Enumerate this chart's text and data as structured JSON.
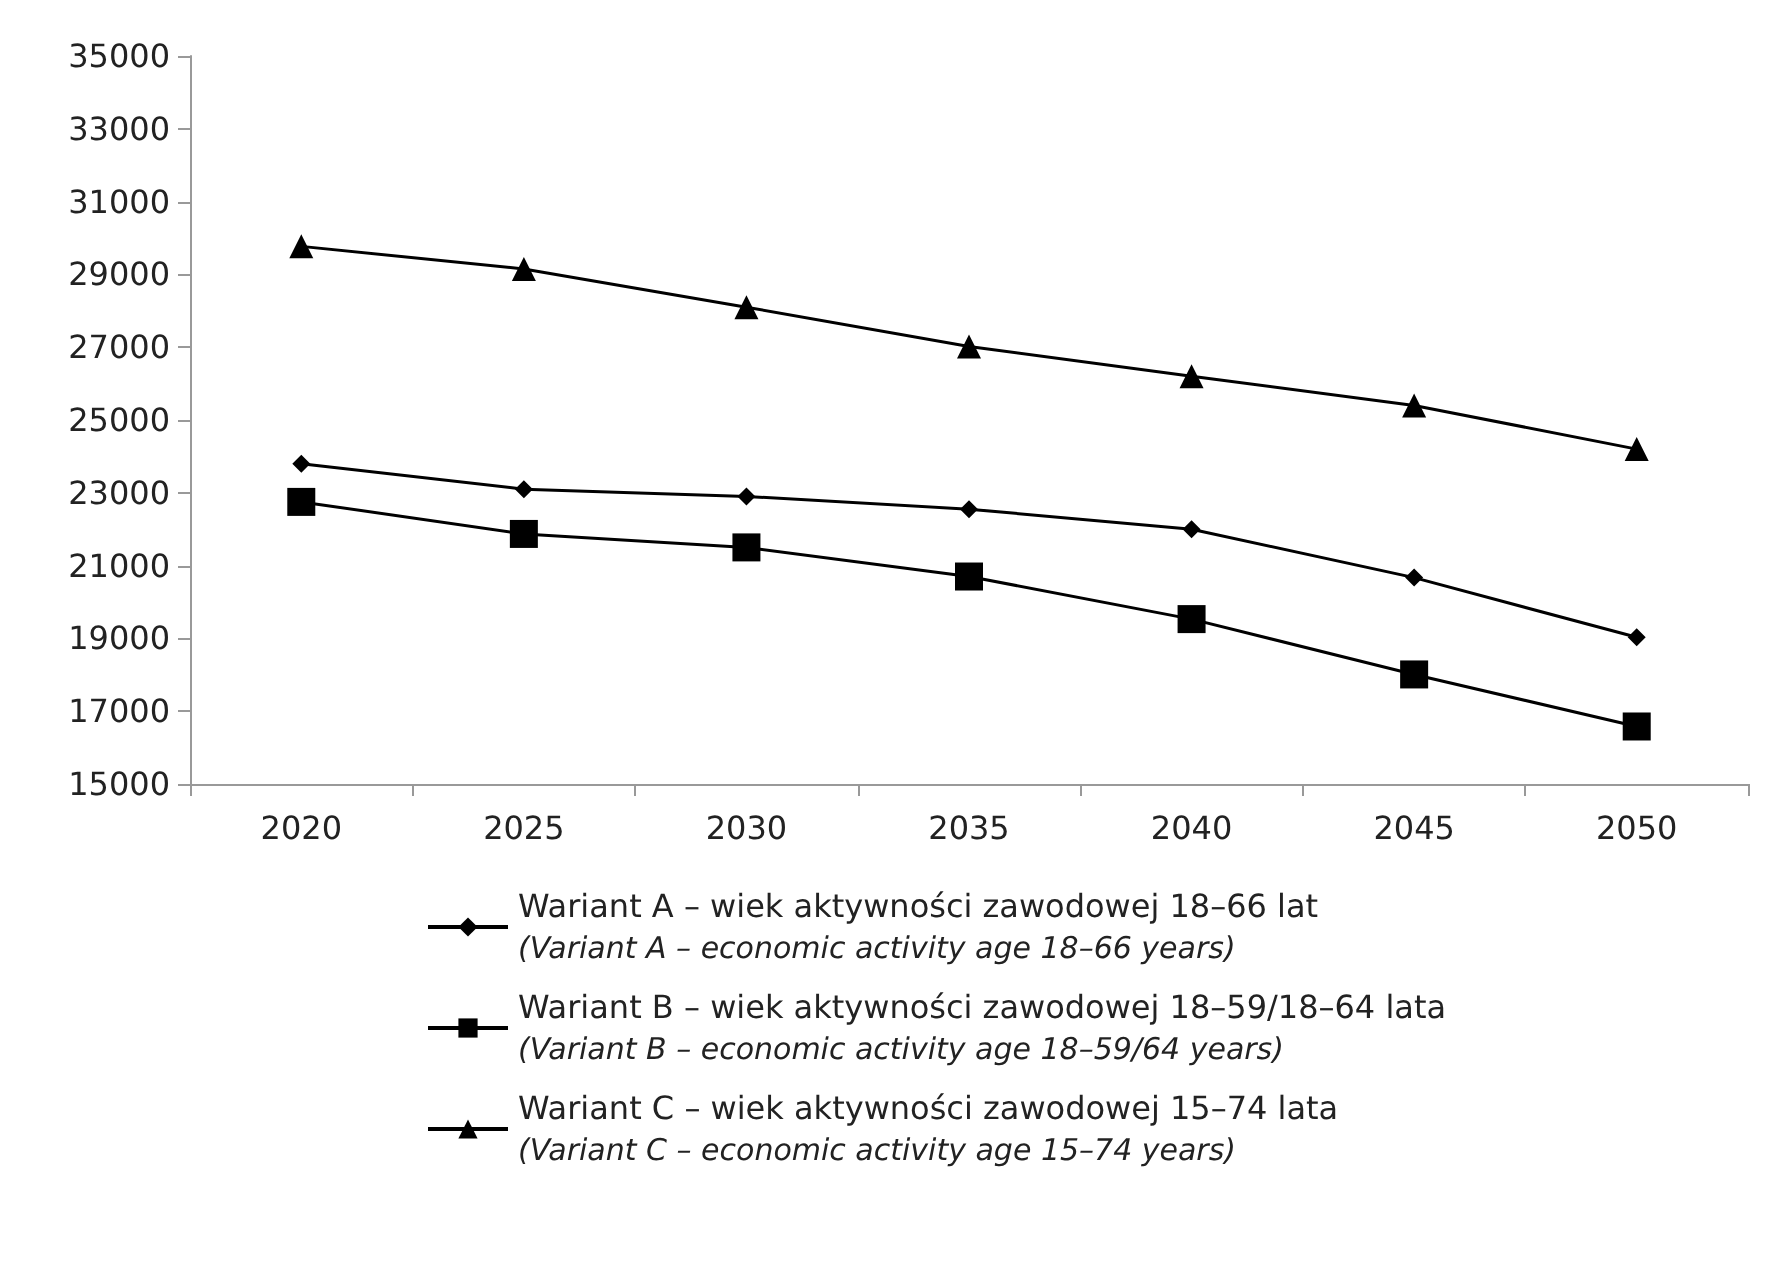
{
  "chart_data": {
    "type": "line",
    "categories": [
      "2020",
      "2025",
      "2030",
      "2035",
      "2040",
      "2045",
      "2050"
    ],
    "series": [
      {
        "name": "Wariant A – wiek aktywności zawodowej 18–66 lat\n(Variant A – economic activity age 18–66 years)",
        "color": "#000000",
        "marker": "diamond",
        "values": [
          23800,
          23100,
          22900,
          22550,
          22000,
          20670,
          19030
        ]
      },
      {
        "name": "Wariant B – wiek aktywności zawodowej 18–59/18–64 lata\n(Variant B – economic activity age 18–59/64 years)",
        "color": "#000000",
        "marker": "square",
        "values": [
          22750,
          21870,
          21500,
          20700,
          19530,
          18010,
          16580
        ]
      },
      {
        "name": "Wariant C – wiek aktywności zawodowej 15–74 lata\n(Variant C – economic activity age 15–74 years)",
        "color": "#000000",
        "marker": "triangle",
        "values": [
          29770,
          29150,
          28100,
          27020,
          26200,
          25400,
          24200
        ]
      }
    ],
    "ylim": [
      15000,
      35000
    ],
    "yticks": [
      15000,
      17000,
      19000,
      21000,
      23000,
      25000,
      27000,
      29000,
      31000,
      33000,
      35000
    ],
    "grid": false,
    "legend": "bottom",
    "line_style": "solid"
  }
}
